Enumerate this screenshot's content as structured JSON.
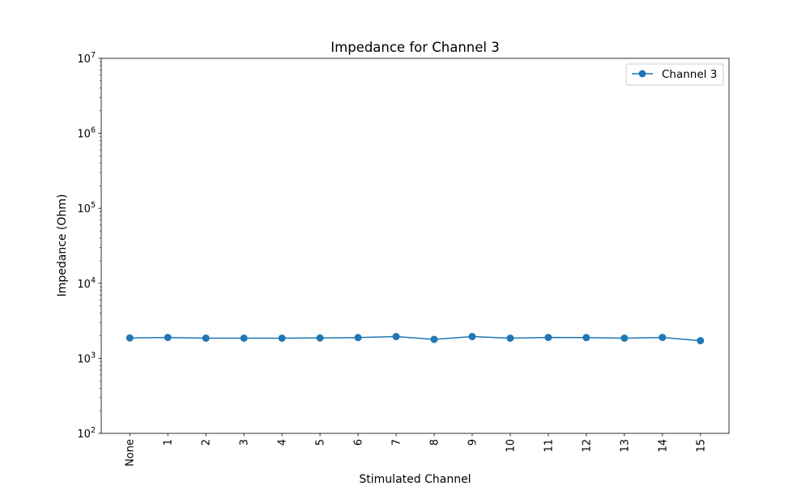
{
  "chart_data": {
    "type": "line",
    "title": "Impedance for Channel 3",
    "xlabel": "Stimulated Channel",
    "ylabel": "Impedance (Ohm)",
    "yscale": "log",
    "ylim": [
      100,
      10000000
    ],
    "categories": [
      "None",
      "1",
      "2",
      "3",
      "4",
      "5",
      "6",
      "7",
      "8",
      "9",
      "10",
      "11",
      "12",
      "13",
      "14",
      "15"
    ],
    "series": [
      {
        "name": "Channel 3",
        "color": "#1f77b4",
        "marker": "circle",
        "values": [
          1870,
          1900,
          1860,
          1860,
          1860,
          1870,
          1890,
          1950,
          1790,
          1950,
          1860,
          1900,
          1890,
          1860,
          1900,
          1720
        ]
      }
    ],
    "y_ticks": [
      {
        "base": "10",
        "exp": "2",
        "value": 100
      },
      {
        "base": "10",
        "exp": "3",
        "value": 1000
      },
      {
        "base": "10",
        "exp": "4",
        "value": 10000
      },
      {
        "base": "10",
        "exp": "5",
        "value": 100000
      },
      {
        "base": "10",
        "exp": "6",
        "value": 1000000
      },
      {
        "base": "10",
        "exp": "7",
        "value": 10000000
      }
    ],
    "x_tick_rotation": "vertical",
    "grid": false,
    "legend": {
      "position": "top-right"
    }
  }
}
